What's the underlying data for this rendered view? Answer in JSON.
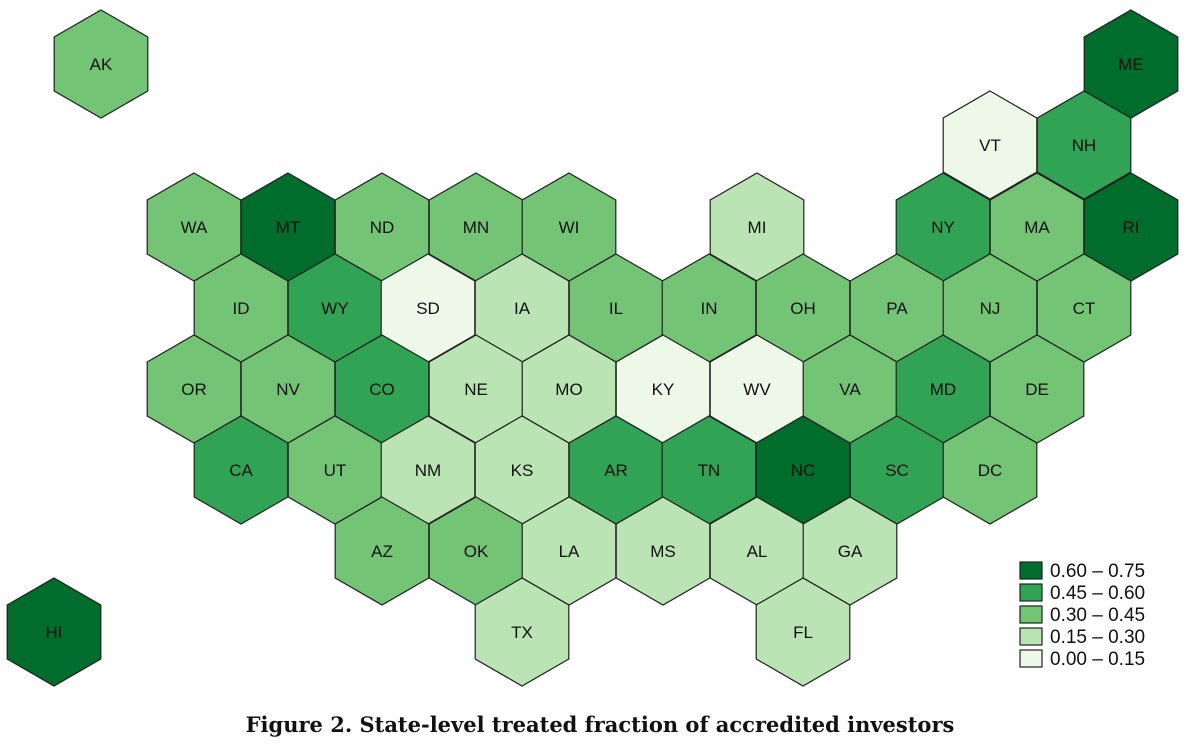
{
  "caption": "Figure 2. State-level treated fraction of accredited investors",
  "colors": {
    "bin0": "#edf8e9",
    "bin1": "#bae4b3",
    "bin2": "#74c476",
    "bin3": "#31a354",
    "bin4": "#006d2c"
  },
  "legend": [
    {
      "label": "0.60 – 0.75",
      "bin": 4
    },
    {
      "label": "0.45 – 0.60",
      "bin": 3
    },
    {
      "label": "0.30 – 0.45",
      "bin": 2
    },
    {
      "label": "0.15 – 0.30",
      "bin": 1
    },
    {
      "label": "0.00 – 0.15",
      "bin": 0
    }
  ],
  "states": [
    {
      "abbr": "AK",
      "bin": 2
    },
    {
      "abbr": "ME",
      "bin": 4
    },
    {
      "abbr": "VT",
      "bin": 0
    },
    {
      "abbr": "NH",
      "bin": 3
    },
    {
      "abbr": "WA",
      "bin": 2
    },
    {
      "abbr": "MT",
      "bin": 4
    },
    {
      "abbr": "ND",
      "bin": 2
    },
    {
      "abbr": "MN",
      "bin": 2
    },
    {
      "abbr": "WI",
      "bin": 2
    },
    {
      "abbr": "MI",
      "bin": 1
    },
    {
      "abbr": "NY",
      "bin": 3
    },
    {
      "abbr": "MA",
      "bin": 2
    },
    {
      "abbr": "RI",
      "bin": 4
    },
    {
      "abbr": "ID",
      "bin": 2
    },
    {
      "abbr": "WY",
      "bin": 3
    },
    {
      "abbr": "SD",
      "bin": 0
    },
    {
      "abbr": "IA",
      "bin": 1
    },
    {
      "abbr": "IL",
      "bin": 2
    },
    {
      "abbr": "IN",
      "bin": 2
    },
    {
      "abbr": "OH",
      "bin": 2
    },
    {
      "abbr": "PA",
      "bin": 2
    },
    {
      "abbr": "NJ",
      "bin": 2
    },
    {
      "abbr": "CT",
      "bin": 2
    },
    {
      "abbr": "OR",
      "bin": 2
    },
    {
      "abbr": "NV",
      "bin": 2
    },
    {
      "abbr": "CO",
      "bin": 3
    },
    {
      "abbr": "NE",
      "bin": 1
    },
    {
      "abbr": "MO",
      "bin": 1
    },
    {
      "abbr": "KY",
      "bin": 0
    },
    {
      "abbr": "WV",
      "bin": 0
    },
    {
      "abbr": "VA",
      "bin": 2
    },
    {
      "abbr": "MD",
      "bin": 3
    },
    {
      "abbr": "DE",
      "bin": 2
    },
    {
      "abbr": "CA",
      "bin": 3
    },
    {
      "abbr": "UT",
      "bin": 2
    },
    {
      "abbr": "NM",
      "bin": 1
    },
    {
      "abbr": "KS",
      "bin": 1
    },
    {
      "abbr": "AR",
      "bin": 3
    },
    {
      "abbr": "TN",
      "bin": 3
    },
    {
      "abbr": "NC",
      "bin": 4
    },
    {
      "abbr": "SC",
      "bin": 3
    },
    {
      "abbr": "DC",
      "bin": 2
    },
    {
      "abbr": "AZ",
      "bin": 2
    },
    {
      "abbr": "OK",
      "bin": 2
    },
    {
      "abbr": "LA",
      "bin": 1
    },
    {
      "abbr": "MS",
      "bin": 1
    },
    {
      "abbr": "AL",
      "bin": 1
    },
    {
      "abbr": "GA",
      "bin": 1
    },
    {
      "abbr": "HI",
      "bin": 4
    },
    {
      "abbr": "TX",
      "bin": 1
    },
    {
      "abbr": "FL",
      "bin": 1
    }
  ]
}
